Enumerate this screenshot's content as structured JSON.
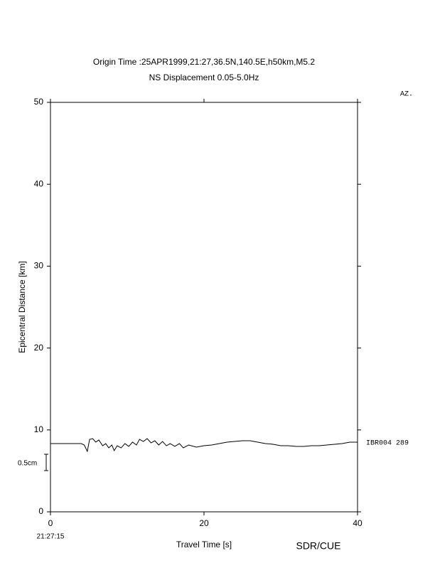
{
  "chart_data": {
    "type": "line",
    "title": "Origin Time :25APR1999,21:27,36.5N,140.5E,h50km,M5.2",
    "subtitle": "NS Displacement 0.05-5.0Hz",
    "x_label": "Travel Time [s]",
    "y_label": "Epicentral Distance [km]",
    "azimuth_header": "AZ.",
    "start_time": "21:27:15",
    "scale_label": "0.5cm",
    "footer": "SDR/CUE",
    "xlim": [
      0,
      40
    ],
    "xticks": [
      0,
      20,
      40
    ],
    "ylim": [
      0,
      50
    ],
    "yticks": [
      0,
      10,
      20,
      30,
      40,
      50
    ],
    "series": [
      {
        "name": "IBR004 289",
        "color": "#000000",
        "x": [
          0,
          4,
          4.4,
          4.8,
          5.1,
          5.5,
          5.9,
          6.3,
          6.8,
          7.2,
          7.6,
          8.0,
          8.3,
          8.7,
          9.2,
          9.7,
          10.2,
          10.7,
          11.2,
          11.6,
          12.1,
          12.6,
          13.1,
          13.6,
          14.1,
          14.6,
          15.1,
          15.6,
          16.2,
          16.8,
          17.3,
          18,
          19,
          20,
          21,
          22,
          23,
          24,
          25,
          26,
          27,
          28,
          29,
          30,
          31,
          32,
          33,
          34,
          35,
          36,
          37,
          38,
          39,
          40
        ],
        "values": [
          8.33,
          8.33,
          8.16,
          7.38,
          8.85,
          8.94,
          8.51,
          8.77,
          8.07,
          8.33,
          7.81,
          8.16,
          7.47,
          8.07,
          7.81,
          8.33,
          7.99,
          8.51,
          8.16,
          8.85,
          8.59,
          8.94,
          8.42,
          8.68,
          8.16,
          8.59,
          8.07,
          8.33,
          7.99,
          8.33,
          7.81,
          8.16,
          7.9,
          8.07,
          8.16,
          8.33,
          8.51,
          8.59,
          8.68,
          8.68,
          8.51,
          8.33,
          8.25,
          8.07,
          8.07,
          7.99,
          7.99,
          8.07,
          8.07,
          8.16,
          8.25,
          8.33,
          8.51,
          8.51
        ]
      }
    ]
  }
}
